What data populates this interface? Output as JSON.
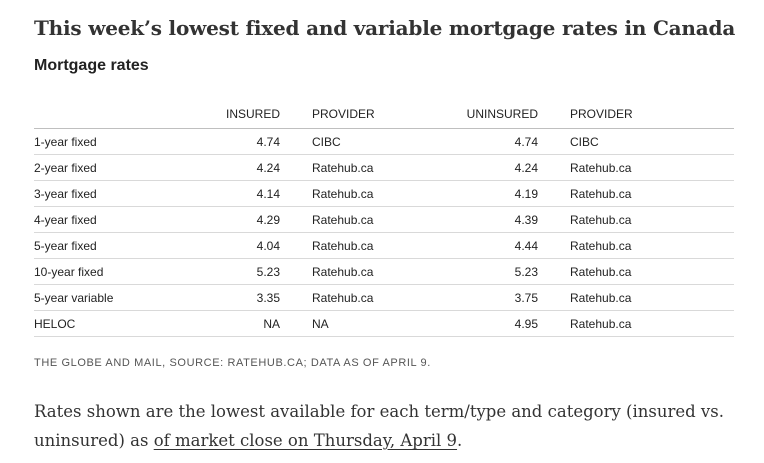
{
  "headline": "This week’s lowest fixed and variable mortgage rates in Canada",
  "subheading": "Mortgage rates",
  "table": {
    "headers": {
      "term": "",
      "insured": "INSURED",
      "insured_provider": "PROVIDER",
      "uninsured": "UNINSURED",
      "uninsured_provider": "PROVIDER"
    },
    "rows": [
      {
        "term": "1-year fixed",
        "insured": "4.74",
        "insured_provider": "CIBC",
        "uninsured": "4.74",
        "uninsured_provider": "CIBC"
      },
      {
        "term": "2-year fixed",
        "insured": "4.24",
        "insured_provider": "Ratehub.ca",
        "uninsured": "4.24",
        "uninsured_provider": "Ratehub.ca"
      },
      {
        "term": "3-year fixed",
        "insured": "4.14",
        "insured_provider": "Ratehub.ca",
        "uninsured": "4.19",
        "uninsured_provider": "Ratehub.ca"
      },
      {
        "term": "4-year fixed",
        "insured": "4.29",
        "insured_provider": "Ratehub.ca",
        "uninsured": "4.39",
        "uninsured_provider": "Ratehub.ca"
      },
      {
        "term": "5-year fixed",
        "insured": "4.04",
        "insured_provider": "Ratehub.ca",
        "uninsured": "4.44",
        "uninsured_provider": "Ratehub.ca"
      },
      {
        "term": "10-year fixed",
        "insured": "5.23",
        "insured_provider": "Ratehub.ca",
        "uninsured": "5.23",
        "uninsured_provider": "Ratehub.ca"
      },
      {
        "term": "5-year variable",
        "insured": "3.35",
        "insured_provider": "Ratehub.ca",
        "uninsured": "3.75",
        "uninsured_provider": "Ratehub.ca"
      },
      {
        "term": "HELOC",
        "insured": "NA",
        "insured_provider": "NA",
        "uninsured": "4.95",
        "uninsured_provider": "Ratehub.ca"
      }
    ]
  },
  "source_line": "THE GLOBE AND MAIL, SOURCE: RATEHUB.CA; DATA AS OF APRIL 9.",
  "body": {
    "text_before_link": "Rates shown are the lowest available for each term/type and category (insured vs. uninsured) as ",
    "link_text": "of market close on Thursday, April 9",
    "text_after_link": "."
  }
}
